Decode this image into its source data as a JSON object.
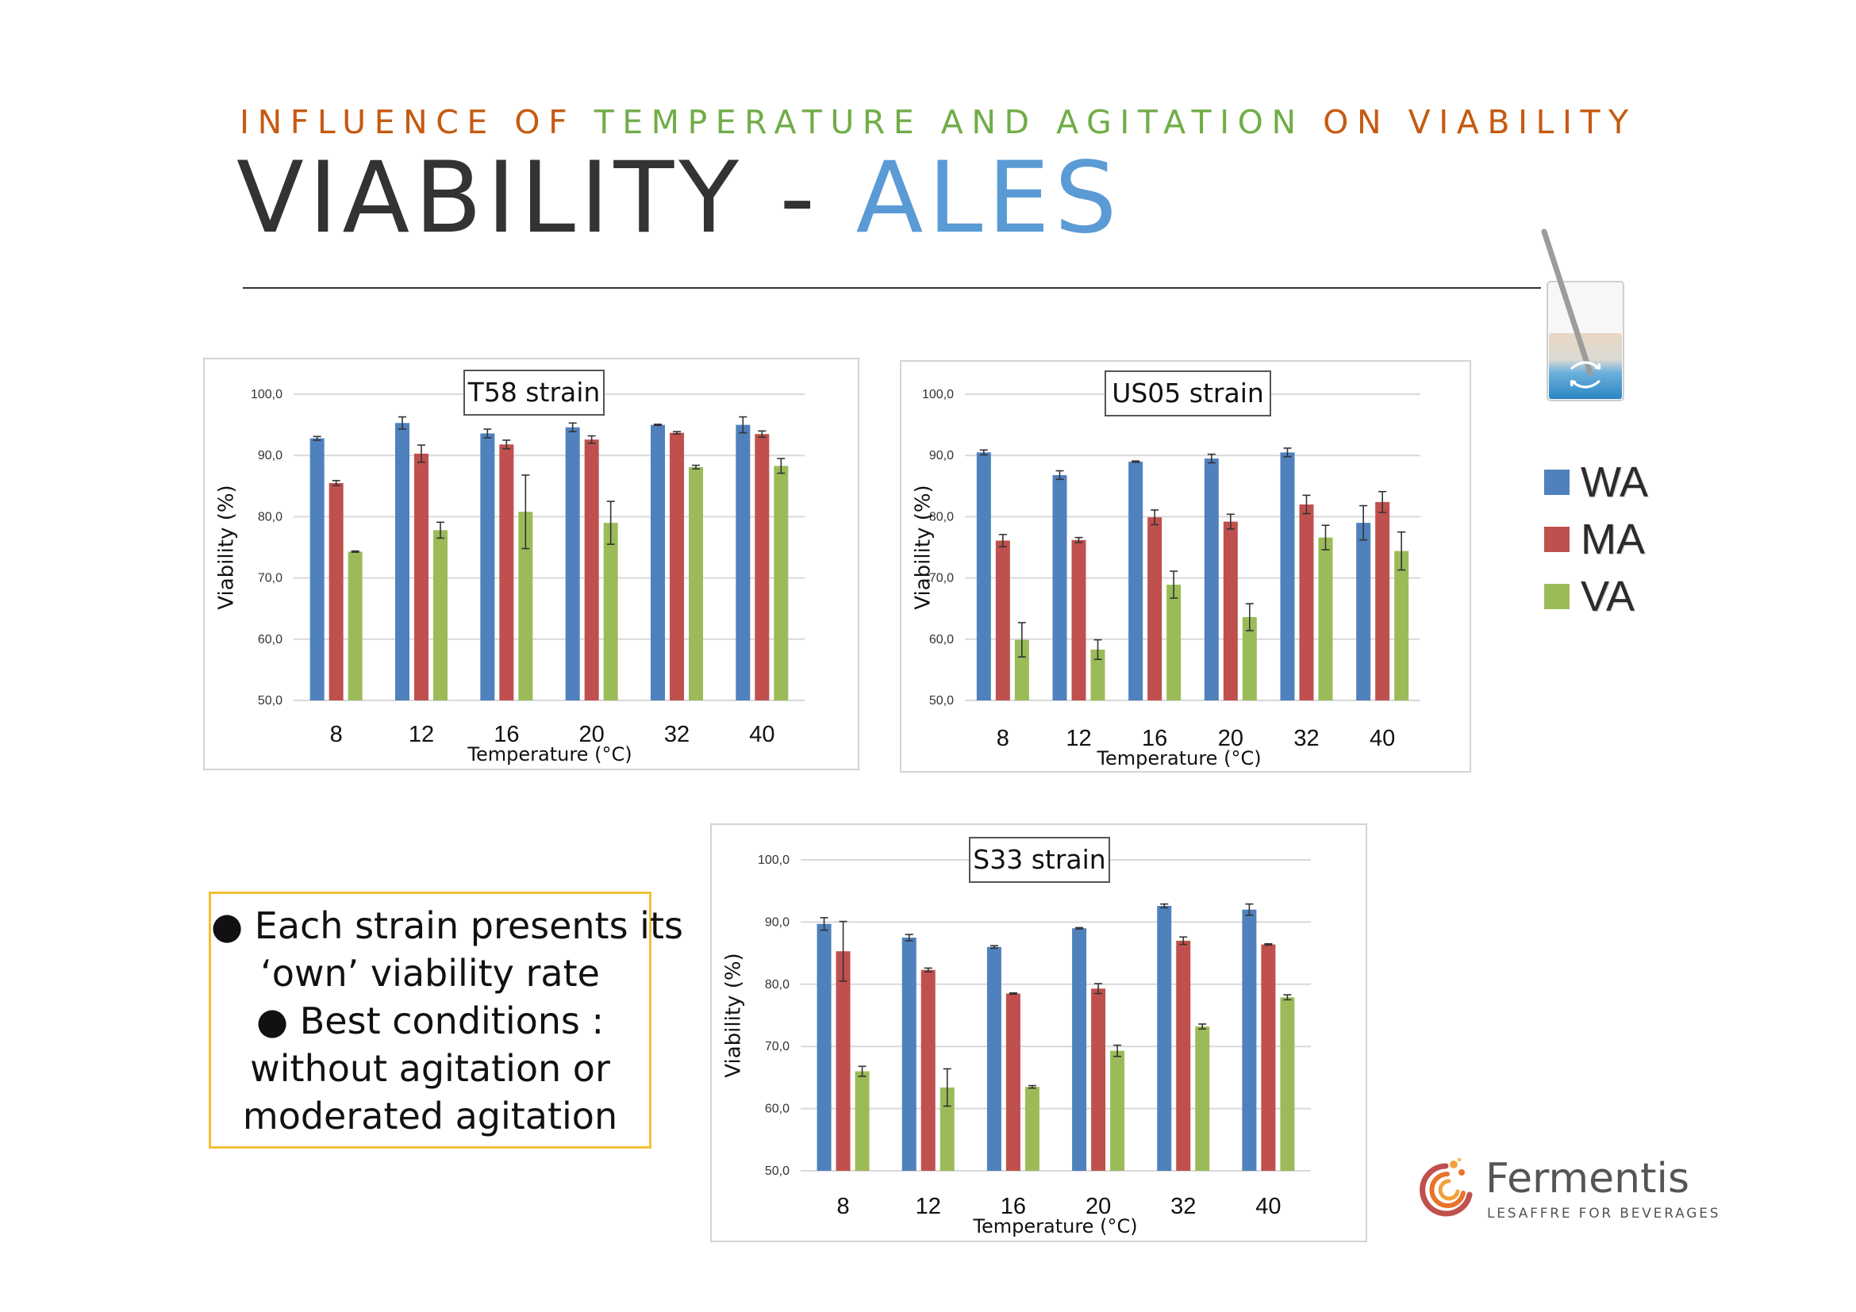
{
  "header": {
    "kicker_parts": [
      {
        "text": "INFLUENCE OF ",
        "color": "#c55a11"
      },
      {
        "text": "TEMPERATURE AND AGITATION ",
        "color": "#70ad47"
      },
      {
        "text": "ON VIABILITY",
        "color": "#c55a11"
      }
    ],
    "title_main": "VIABILITY - ",
    "title_accent": "ALES",
    "title_accent_color": "#5b9bd5"
  },
  "legend": {
    "items": [
      {
        "label": "WA",
        "color": "#4f81bd"
      },
      {
        "label": "MA",
        "color": "#c0504d"
      },
      {
        "label": "VA",
        "color": "#9bbb59"
      }
    ]
  },
  "notes": {
    "lines": [
      "● Each strain presents its",
      "‘own’ viability rate",
      "● Best conditions :",
      "without agitation or",
      "moderated agitation"
    ]
  },
  "logo": {
    "name": "Fermentis",
    "tagline": "LESAFFRE FOR BEVERAGES"
  },
  "chart_data": [
    {
      "type": "bar",
      "title": "T58 strain",
      "xlabel": "Temperature (°C)",
      "ylabel": "Viability (%)",
      "categories": [
        "8",
        "12",
        "16",
        "20",
        "32",
        "40"
      ],
      "ylim": [
        50,
        100
      ],
      "yticks": [
        "50,0",
        "60,0",
        "70,0",
        "80,0",
        "90,0",
        "100,0"
      ],
      "grid": true,
      "series": [
        {
          "name": "WA",
          "color": "#4f81bd",
          "values": [
            92.8,
            95.3,
            93.6,
            94.6,
            95.0,
            95.0
          ],
          "errors": [
            0.3,
            1.0,
            0.7,
            0.7,
            0.1,
            1.3
          ]
        },
        {
          "name": "MA",
          "color": "#c0504d",
          "values": [
            85.5,
            90.3,
            91.8,
            92.6,
            93.7,
            93.5
          ],
          "errors": [
            0.4,
            1.4,
            0.7,
            0.6,
            0.2,
            0.5
          ]
        },
        {
          "name": "VA",
          "color": "#9bbb59",
          "values": [
            74.3,
            77.8,
            80.8,
            79.0,
            88.1,
            88.3
          ],
          "errors": [
            0.1,
            1.3,
            6.0,
            3.5,
            0.3,
            1.2
          ]
        }
      ]
    },
    {
      "type": "bar",
      "title": "US05 strain",
      "xlabel": "Temperature (°C)",
      "ylabel": "Viability (%)",
      "categories": [
        "8",
        "12",
        "16",
        "20",
        "32",
        "40"
      ],
      "ylim": [
        50,
        100
      ],
      "yticks": [
        "50,0",
        "60,0",
        "70,0",
        "80,0",
        "90,0",
        "100,0"
      ],
      "grid": true,
      "series": [
        {
          "name": "WA",
          "color": "#4f81bd",
          "values": [
            90.5,
            86.8,
            89.0,
            89.5,
            90.5,
            79.0
          ],
          "errors": [
            0.4,
            0.7,
            0.1,
            0.7,
            0.7,
            2.8
          ]
        },
        {
          "name": "MA",
          "color": "#c0504d",
          "values": [
            76.1,
            76.2,
            79.9,
            79.2,
            82.0,
            82.4
          ],
          "errors": [
            1.0,
            0.4,
            1.2,
            1.2,
            1.5,
            1.7
          ]
        },
        {
          "name": "VA",
          "color": "#9bbb59",
          "values": [
            59.9,
            58.3,
            68.9,
            63.6,
            76.6,
            74.4
          ],
          "errors": [
            2.8,
            1.6,
            2.2,
            2.2,
            2.0,
            3.1
          ]
        }
      ]
    },
    {
      "type": "bar",
      "title": "S33 strain",
      "xlabel": "Temperature (°C)",
      "ylabel": "Viability (%)",
      "categories": [
        "8",
        "12",
        "16",
        "20",
        "32",
        "40"
      ],
      "ylim": [
        50,
        100
      ],
      "yticks": [
        "50,0",
        "60,0",
        "70,0",
        "80,0",
        "90,0",
        "100,0"
      ],
      "grid": true,
      "series": [
        {
          "name": "WA",
          "color": "#4f81bd",
          "values": [
            89.7,
            87.5,
            86.0,
            89.0,
            92.6,
            92.0
          ],
          "errors": [
            1.0,
            0.5,
            0.2,
            0.1,
            0.3,
            0.9
          ]
        },
        {
          "name": "MA",
          "color": "#c0504d",
          "values": [
            85.3,
            82.3,
            78.5,
            79.3,
            87.0,
            86.4
          ],
          "errors": [
            4.8,
            0.3,
            0.1,
            0.8,
            0.6,
            0.1
          ]
        },
        {
          "name": "VA",
          "color": "#9bbb59",
          "values": [
            66.0,
            63.4,
            63.5,
            69.3,
            73.2,
            77.9
          ],
          "errors": [
            0.8,
            3.0,
            0.2,
            0.9,
            0.4,
            0.4
          ]
        }
      ]
    }
  ]
}
